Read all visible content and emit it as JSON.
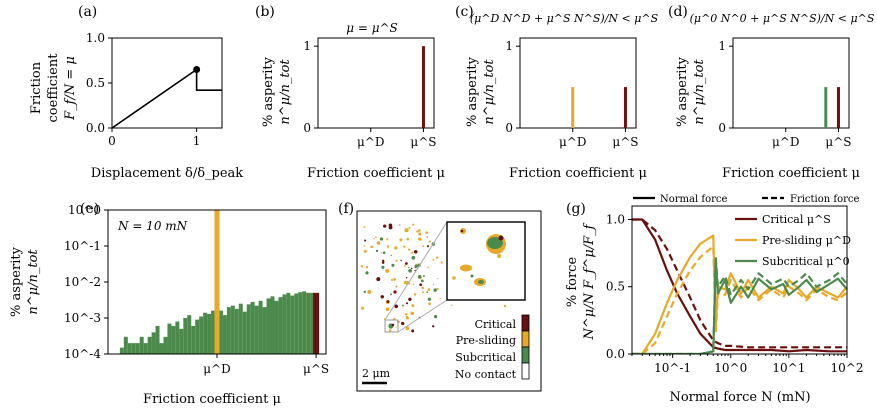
{
  "colors": {
    "critical": "#6b0f0f",
    "presliding": "#e8a92a",
    "subcritical": "#4c8a4c",
    "nocontact": "#ffffff"
  },
  "panels": {
    "a": {
      "letter": "(a)",
      "ylabel_lines": [
        "Friction",
        "coefficient",
        "F_f/N = μ"
      ],
      "xlabel": "Displacement δ/δ_peak",
      "yticks": [
        "0.0",
        "0.5",
        "1.0"
      ],
      "xticks": [
        "0",
        "1"
      ]
    },
    "b": {
      "letter": "(b)",
      "title": "μ = μ^S",
      "ylabel_lines": [
        "% asperity",
        "n^μ/n_tot"
      ],
      "xlabel": "Friction coefficient μ",
      "yticks": [
        "0",
        "1"
      ],
      "xticks": [
        "μ^D",
        "μ^S"
      ]
    },
    "c": {
      "letter": "(c)",
      "title": "(μ^D N^D + μ^S N^S)/N < μ^S",
      "ylabel_lines": [
        "% asperity",
        "n^μ/n_tot"
      ],
      "xlabel": "Friction coefficient μ",
      "yticks": [
        "0",
        "1"
      ],
      "xticks": [
        "μ^D",
        "μ^S"
      ]
    },
    "d": {
      "letter": "(d)",
      "title": "(μ^0 N^0 + μ^S N^S)/N < μ^S",
      "ylabel_lines": [
        "% asperity",
        "n^μ/n_tot"
      ],
      "xlabel": "Friction coefficient μ",
      "yticks": [
        "0",
        "1"
      ],
      "xticks": [
        "μ^D",
        "μ^S"
      ]
    },
    "e": {
      "letter": "(e)",
      "annotation": "N = 10 mN",
      "ylabel_lines": [
        "% asperity",
        "n^μ/n_tot"
      ],
      "xlabel": "Friction coefficient μ",
      "yticks": [
        "10^0",
        "10^-1",
        "10^-2",
        "10^-3",
        "10^-4"
      ],
      "xticks": [
        "μ^D",
        "μ^S"
      ]
    },
    "f": {
      "letter": "(f)",
      "legend": [
        "Critical",
        "Pre-sliding",
        "Subcritical",
        "No contact"
      ],
      "scalebar": "2 μm"
    },
    "g": {
      "letter": "(g)",
      "ylabel_lines": [
        "% force",
        "N^μ/N  F_f^μ/F_f"
      ],
      "xlabel": "Normal force N (mN)",
      "yticks": [
        "0.0",
        "0.5",
        "1.0"
      ],
      "xticks": [
        "10^-1",
        "10^0",
        "10^1",
        "10^2"
      ],
      "top_legend": [
        "Normal force",
        "Friction force"
      ],
      "legend": [
        "Critical μ^S",
        "Pre-sliding μ^D",
        "Subcritical μ^0"
      ]
    }
  },
  "chart_data": [
    {
      "panel": "a",
      "type": "line",
      "xlim": [
        0,
        1.3
      ],
      "ylim": [
        0,
        1.0
      ],
      "x": [
        0,
        1,
        1,
        1.3
      ],
      "y": [
        0,
        0.65,
        0.42,
        0.42
      ],
      "marker": [
        1,
        0.65
      ]
    },
    {
      "panel": "b",
      "type": "bar",
      "xlim": [
        0,
        1.1
      ],
      "ylim": [
        0,
        1.1
      ],
      "bars": [
        {
          "x": 1.0,
          "value": 1.0,
          "kind": "critical"
        }
      ]
    },
    {
      "panel": "c",
      "type": "bar",
      "xlim": [
        0,
        1.1
      ],
      "ylim": [
        0,
        1.1
      ],
      "bars": [
        {
          "x": 0.5,
          "value": 0.5,
          "kind": "presliding"
        },
        {
          "x": 1.0,
          "value": 0.5,
          "kind": "critical"
        }
      ]
    },
    {
      "panel": "d",
      "type": "bar",
      "xlim": [
        0,
        1.1
      ],
      "ylim": [
        0,
        1.1
      ],
      "bars": [
        {
          "x": 0.88,
          "value": 0.5,
          "kind": "subcritical"
        },
        {
          "x": 1.0,
          "value": 0.5,
          "kind": "critical"
        }
      ]
    },
    {
      "panel": "e",
      "type": "bar",
      "scale": "log",
      "ylim": [
        0.0001,
        1.0
      ],
      "x": [
        0.02,
        0.04,
        0.06,
        0.08,
        0.1,
        0.12,
        0.14,
        0.16,
        0.18,
        0.2,
        0.22,
        0.24,
        0.26,
        0.28,
        0.3,
        0.32,
        0.34,
        0.36,
        0.38,
        0.4,
        0.42,
        0.44,
        0.46,
        0.48,
        0.5,
        0.52,
        0.54,
        0.56,
        0.58,
        0.6,
        0.62,
        0.64,
        0.66,
        0.68,
        0.7,
        0.72,
        0.74,
        0.76,
        0.78,
        0.8,
        0.82,
        0.84,
        0.86,
        0.88,
        0.9,
        0.92,
        0.94,
        0.96,
        0.98
      ],
      "values": [
        0.00015,
        0.0003,
        0.0002,
        0.0002,
        0.0002,
        0.0003,
        0.0002,
        0.0003,
        0.0004,
        0.0006,
        0.0002,
        0.0003,
        0.0007,
        0.0006,
        0.0008,
        0.0005,
        0.001,
        0.0012,
        0.0006,
        0.0009,
        0.0011,
        0.0014,
        0.0013,
        0.0016,
        0.0018,
        0.0016,
        0.0012,
        0.002,
        0.0022,
        0.0018,
        0.0025,
        0.0015,
        0.0024,
        0.0028,
        0.0022,
        0.003,
        0.002,
        0.0035,
        0.004,
        0.003,
        0.0038,
        0.0045,
        0.005,
        0.0042,
        0.0048,
        0.0052,
        0.0055,
        0.005,
        0.005
      ],
      "presliding_bar": {
        "x": 0.5,
        "value": 1.0
      },
      "critical_bar": {
        "x": 1.0,
        "value": 0.005
      }
    },
    {
      "panel": "g",
      "type": "line",
      "xscale": "log",
      "xlim": [
        0.02,
        100
      ],
      "ylim": [
        0,
        1.1
      ],
      "series": [
        {
          "name": "Critical μ^S",
          "kind": "critical",
          "style": "solid",
          "x": [
            0.02,
            0.03,
            0.05,
            0.08,
            0.12,
            0.2,
            0.3,
            0.5,
            0.6,
            0.8,
            1,
            2,
            5,
            10,
            20,
            50,
            100
          ],
          "y": [
            1.0,
            1.0,
            0.85,
            0.62,
            0.45,
            0.28,
            0.15,
            0.05,
            0.04,
            0.03,
            0.03,
            0.03,
            0.03,
            0.02,
            0.03,
            0.02,
            0.02
          ]
        },
        {
          "name": "",
          "kind": "critical",
          "style": "dashed",
          "x": [
            0.02,
            0.03,
            0.05,
            0.08,
            0.12,
            0.2,
            0.3,
            0.5,
            0.6,
            0.8,
            1,
            2,
            5,
            10,
            20,
            50,
            100
          ],
          "y": [
            1.0,
            1.0,
            0.92,
            0.78,
            0.62,
            0.42,
            0.25,
            0.1,
            0.08,
            0.06,
            0.06,
            0.05,
            0.05,
            0.05,
            0.05,
            0.05,
            0.05
          ]
        },
        {
          "name": "Pre-sliding μ^D",
          "kind": "presliding",
          "style": "solid",
          "x": [
            0.02,
            0.03,
            0.05,
            0.08,
            0.12,
            0.2,
            0.3,
            0.5,
            0.55,
            0.6,
            0.8,
            1,
            1.5,
            2,
            3,
            5,
            8,
            10,
            15,
            20,
            30,
            50,
            70,
            100
          ],
          "y": [
            0,
            0,
            0.15,
            0.38,
            0.55,
            0.72,
            0.82,
            0.88,
            0.2,
            0.5,
            0.48,
            0.6,
            0.45,
            0.55,
            0.42,
            0.5,
            0.45,
            0.55,
            0.48,
            0.42,
            0.5,
            0.45,
            0.42,
            0.5
          ]
        },
        {
          "name": "",
          "kind": "presliding",
          "style": "dashed",
          "x": [
            0.02,
            0.03,
            0.05,
            0.08,
            0.12,
            0.2,
            0.3,
            0.5,
            0.55,
            0.6,
            0.8,
            1,
            1.5,
            2,
            3,
            5,
            8,
            10,
            15,
            20,
            30,
            50,
            70,
            100
          ],
          "y": [
            0,
            0,
            0.08,
            0.28,
            0.45,
            0.62,
            0.72,
            0.8,
            0.15,
            0.45,
            0.44,
            0.55,
            0.42,
            0.5,
            0.4,
            0.48,
            0.42,
            0.5,
            0.45,
            0.4,
            0.48,
            0.42,
            0.4,
            0.46
          ]
        },
        {
          "name": "Subcritical μ^0",
          "kind": "subcritical",
          "style": "solid",
          "x": [
            0.02,
            0.1,
            0.3,
            0.5,
            0.55,
            0.6,
            0.8,
            1,
            1.5,
            2,
            3,
            5,
            8,
            10,
            15,
            20,
            30,
            50,
            70,
            100
          ],
          "y": [
            0,
            0,
            0,
            0.02,
            0.7,
            0.45,
            0.55,
            0.38,
            0.5,
            0.42,
            0.56,
            0.48,
            0.52,
            0.44,
            0.5,
            0.55,
            0.46,
            0.52,
            0.56,
            0.48
          ]
        },
        {
          "name": "",
          "kind": "subcritical",
          "style": "dashed",
          "x": [
            0.02,
            0.1,
            0.3,
            0.5,
            0.55,
            0.6,
            0.8,
            1,
            1.5,
            2,
            3,
            5,
            8,
            10,
            15,
            20,
            30,
            50,
            70,
            100
          ],
          "y": [
            0,
            0,
            0,
            0.02,
            0.72,
            0.5,
            0.58,
            0.44,
            0.55,
            0.48,
            0.6,
            0.52,
            0.56,
            0.5,
            0.55,
            0.6,
            0.5,
            0.55,
            0.6,
            0.52
          ]
        }
      ]
    }
  ]
}
